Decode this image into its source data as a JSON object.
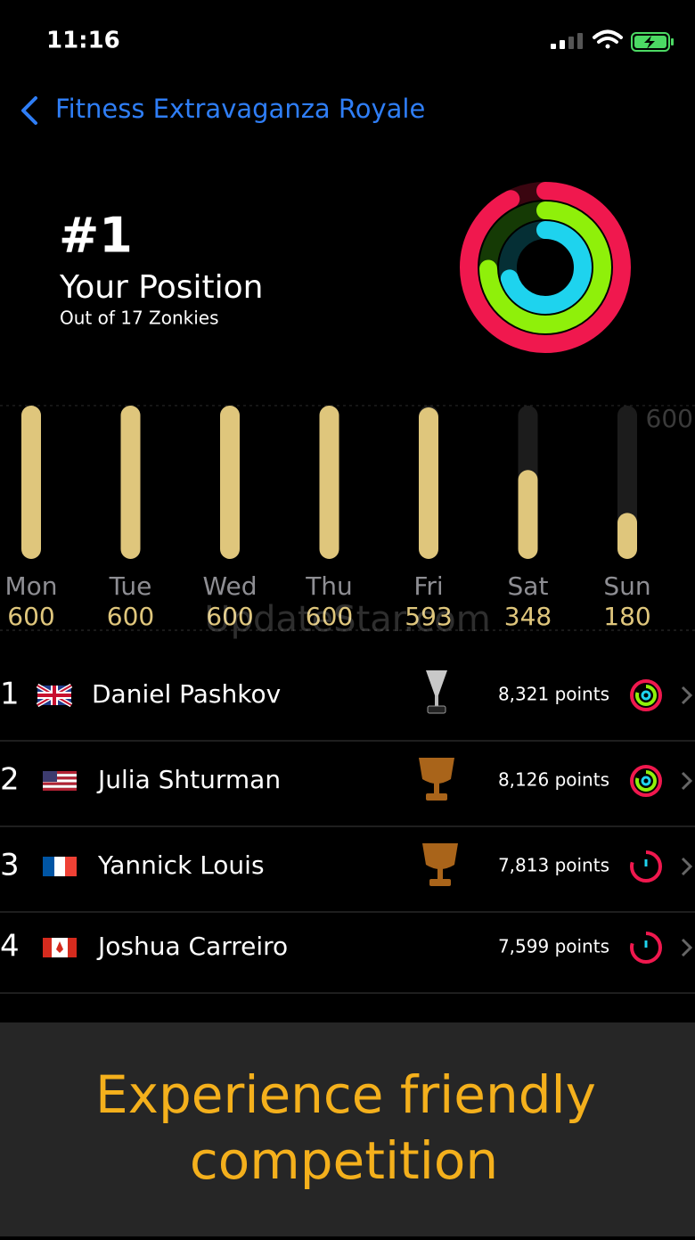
{
  "status_bar": {
    "time": "11:16"
  },
  "nav": {
    "title": "Fitness Extravaganza Royale"
  },
  "position": {
    "rank": "#1",
    "label": "Your Position",
    "subtitle": "Out of 17 Zonkies"
  },
  "chart_data": {
    "type": "bar",
    "categories": [
      "Mon",
      "Tue",
      "Wed",
      "Thu",
      "Fri",
      "Sat",
      "Sun"
    ],
    "values": [
      600,
      600,
      600,
      600,
      593,
      348,
      180
    ],
    "color": "#dfc67c",
    "ylim": [
      0,
      600
    ],
    "yticks": [
      600
    ],
    "grid": true
  },
  "watermark": "UpdateStar.com",
  "leaderboard": {
    "rows": [
      {
        "rank": "1",
        "name": "Daniel Pashkov",
        "points": "8,321 points"
      },
      {
        "rank": "2",
        "name": "Julia Shturman",
        "points": "8,126 points"
      },
      {
        "rank": "3",
        "name": "Yannick Louis",
        "points": "7,813 points"
      },
      {
        "rank": "4",
        "name": "Joshua Carreiro",
        "points": "7,599 points"
      }
    ]
  },
  "banner": {
    "lines": [
      "Experience friendly",
      "competition"
    ]
  }
}
